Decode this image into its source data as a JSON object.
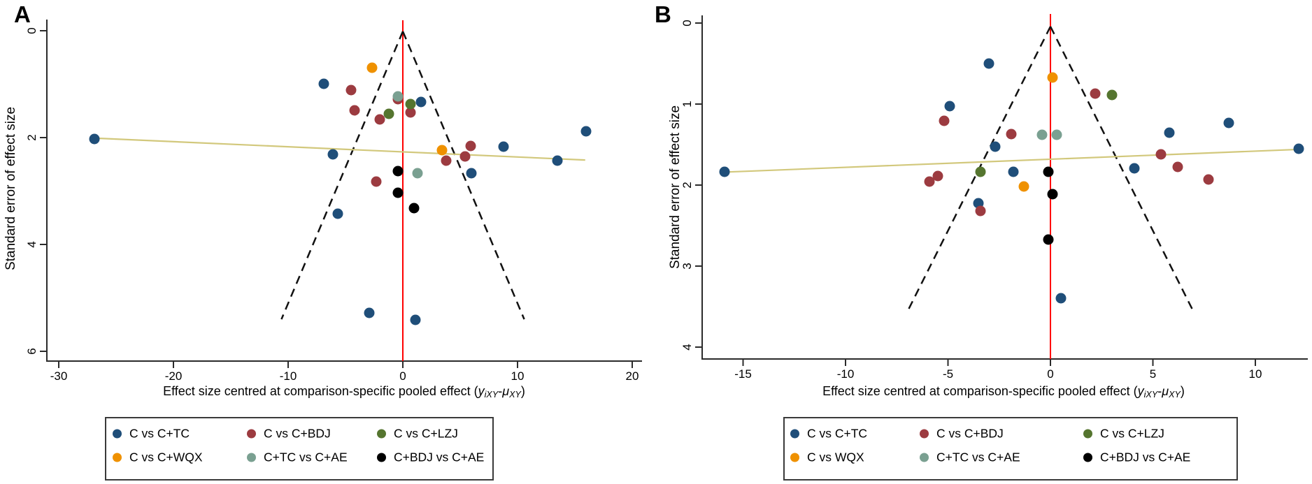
{
  "figure_labels": {
    "panel_a": "A",
    "panel_b": "B"
  },
  "axis_titles": {
    "y": "Standard error of effect size",
    "x_parts": [
      {
        "t": "Effect size centred at comparison-specific pooled effect ("
      },
      {
        "t": "y",
        "i": true
      },
      {
        "t": "iXY",
        "i": true,
        "s": true
      },
      {
        "t": "-"
      },
      {
        "t": "μ",
        "i": true
      },
      {
        "t": "XY",
        "i": true,
        "s": true
      },
      {
        "t": ")"
      }
    ]
  },
  "colors": {
    "axis": "#2b2b2b",
    "reference_line": "#ff0000",
    "funnel_dashed": "#111111",
    "regression_line": "#d2c87c",
    "navy": "#1f4e79",
    "brick": "#9c3b40",
    "olive": "#55752f",
    "orange": "#ef9100",
    "teal": "#7aa091",
    "black": "#000000"
  },
  "chart_data": [
    {
      "id": "A",
      "type": "scatter",
      "panel_label": "A",
      "ylabel": "Standard error of effect size",
      "x_ticks": [
        -30,
        -20,
        -10,
        0,
        10,
        20
      ],
      "y_ticks": [
        0,
        2,
        4,
        6
      ],
      "xlim": [
        -31,
        20.9
      ],
      "ylim": [
        0,
        6.18
      ],
      "grid": false,
      "legend_position": "bottom",
      "reference_line_x": 0,
      "funnel": {
        "center_x": 0,
        "ci_multiplier": 1.96,
        "se_max": 5.4
      },
      "regression_line": {
        "x1": -26.9,
        "se1": 2.01,
        "x2": 15.9,
        "se2": 2.42
      },
      "series": [
        {
          "name": "C vs C+TC",
          "color": "#1f4e79",
          "points": [
            [
              -26.9,
              2.03
            ],
            [
              -6.9,
              0.99
            ],
            [
              -6.1,
              2.31
            ],
            [
              -5.7,
              3.42
            ],
            [
              1.6,
              1.33
            ],
            [
              6.0,
              2.67
            ],
            [
              8.8,
              2.17
            ],
            [
              13.5,
              2.43
            ],
            [
              16.0,
              1.88
            ],
            [
              -2.9,
              5.28
            ],
            [
              1.1,
              5.41
            ]
          ]
        },
        {
          "name": "C vs C+BDJ",
          "color": "#9c3b40",
          "points": [
            [
              -4.5,
              1.11
            ],
            [
              -0.4,
              1.28
            ],
            [
              -4.2,
              1.49
            ],
            [
              0.7,
              1.53
            ],
            [
              -2.0,
              1.66
            ],
            [
              5.9,
              2.16
            ],
            [
              5.4,
              2.35
            ],
            [
              3.8,
              2.43
            ],
            [
              -2.3,
              2.82
            ]
          ]
        },
        {
          "name": "C vs C+LZJ",
          "color": "#55752f",
          "points": [
            [
              0.7,
              1.37
            ],
            [
              -1.2,
              1.56
            ]
          ]
        },
        {
          "name": "C vs C+WQX",
          "color": "#ef9100",
          "points": [
            [
              -2.7,
              0.69
            ],
            [
              3.4,
              2.24
            ]
          ]
        },
        {
          "name": "C+TC vs C+AE",
          "color": "#7aa091",
          "points": [
            [
              -0.4,
              1.23
            ],
            [
              1.3,
              2.67
            ]
          ]
        },
        {
          "name": "C+BDJ vs C+AE",
          "color": "#000000",
          "points": [
            [
              -0.4,
              2.63
            ],
            [
              -0.4,
              3.03
            ],
            [
              1.0,
              3.32
            ]
          ]
        }
      ]
    },
    {
      "id": "B",
      "type": "scatter",
      "panel_label": "B",
      "ylabel": "Standard error of effect size",
      "x_ticks": [
        -15,
        -10,
        -5,
        0,
        5,
        10
      ],
      "y_ticks": [
        0,
        1,
        2,
        3,
        4
      ],
      "xlim": [
        -17,
        12.6
      ],
      "ylim": [
        0,
        4.15
      ],
      "grid": false,
      "legend_position": "bottom",
      "reference_line_x": 0,
      "funnel": {
        "center_x": 0,
        "ci_multiplier": 1.96,
        "se_max": 3.58
      },
      "regression_line": {
        "x1": -15.9,
        "se1": 1.84,
        "x2": 12.1,
        "se2": 1.56
      },
      "series": [
        {
          "name": "C vs C+TC",
          "color": "#1f4e79",
          "points": [
            [
              -15.9,
              1.84
            ],
            [
              -3.0,
              0.5
            ],
            [
              -4.9,
              1.03
            ],
            [
              -2.7,
              1.53
            ],
            [
              -1.8,
              1.84
            ],
            [
              -3.5,
              2.22
            ],
            [
              4.1,
              1.79
            ],
            [
              5.8,
              1.35
            ],
            [
              8.7,
              1.23
            ],
            [
              12.1,
              1.55
            ],
            [
              0.5,
              3.4
            ]
          ]
        },
        {
          "name": "C vs C+BDJ",
          "color": "#9c3b40",
          "points": [
            [
              -5.2,
              1.21
            ],
            [
              -5.5,
              1.89
            ],
            [
              -5.9,
              1.96
            ],
            [
              -3.4,
              2.32
            ],
            [
              -1.9,
              1.37
            ],
            [
              2.2,
              0.87
            ],
            [
              5.4,
              1.62
            ],
            [
              6.2,
              1.78
            ],
            [
              7.7,
              1.93
            ]
          ]
        },
        {
          "name": "C vs C+LZJ",
          "color": "#55752f",
          "points": [
            [
              3.0,
              0.89
            ],
            [
              -3.4,
              1.84
            ]
          ]
        },
        {
          "name": "C vs WQX",
          "color": "#ef9100",
          "points": [
            [
              0.1,
              0.67
            ],
            [
              -1.3,
              2.02
            ]
          ]
        },
        {
          "name": "C+TC vs C+AE",
          "color": "#7aa091",
          "points": [
            [
              -0.4,
              1.38
            ],
            [
              0.3,
              1.38
            ]
          ]
        },
        {
          "name": "C+BDJ vs C+AE",
          "color": "#000000",
          "points": [
            [
              -0.1,
              1.84
            ],
            [
              0.1,
              2.11
            ],
            [
              -0.1,
              2.67
            ]
          ]
        }
      ]
    }
  ]
}
